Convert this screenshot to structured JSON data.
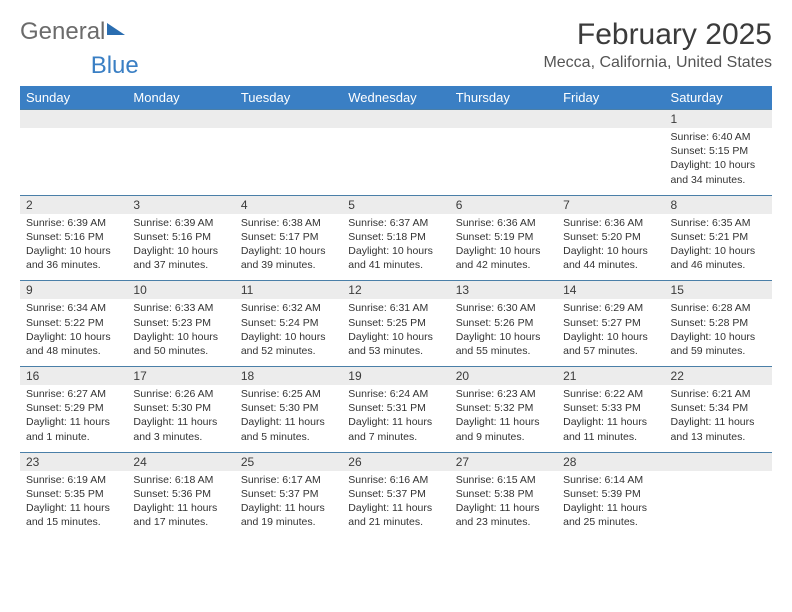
{
  "logo": {
    "general": "General",
    "blue": "Blue"
  },
  "header": {
    "title": "February 2025",
    "location": "Mecca, California, United States"
  },
  "style": {
    "header_bg": "#3a7fc4",
    "header_text": "#ffffff",
    "daynum_bg": "#ececec",
    "row_border": "#4a7fa8",
    "title_fontsize": 30,
    "location_fontsize": 16,
    "cell_fontsize": 10.5
  },
  "days_of_week": [
    "Sunday",
    "Monday",
    "Tuesday",
    "Wednesday",
    "Thursday",
    "Friday",
    "Saturday"
  ],
  "weeks": [
    [
      null,
      null,
      null,
      null,
      null,
      null,
      {
        "n": "1",
        "sunrise": "Sunrise: 6:40 AM",
        "sunset": "Sunset: 5:15 PM",
        "daylight": "Daylight: 10 hours and 34 minutes."
      }
    ],
    [
      {
        "n": "2",
        "sunrise": "Sunrise: 6:39 AM",
        "sunset": "Sunset: 5:16 PM",
        "daylight": "Daylight: 10 hours and 36 minutes."
      },
      {
        "n": "3",
        "sunrise": "Sunrise: 6:39 AM",
        "sunset": "Sunset: 5:16 PM",
        "daylight": "Daylight: 10 hours and 37 minutes."
      },
      {
        "n": "4",
        "sunrise": "Sunrise: 6:38 AM",
        "sunset": "Sunset: 5:17 PM",
        "daylight": "Daylight: 10 hours and 39 minutes."
      },
      {
        "n": "5",
        "sunrise": "Sunrise: 6:37 AM",
        "sunset": "Sunset: 5:18 PM",
        "daylight": "Daylight: 10 hours and 41 minutes."
      },
      {
        "n": "6",
        "sunrise": "Sunrise: 6:36 AM",
        "sunset": "Sunset: 5:19 PM",
        "daylight": "Daylight: 10 hours and 42 minutes."
      },
      {
        "n": "7",
        "sunrise": "Sunrise: 6:36 AM",
        "sunset": "Sunset: 5:20 PM",
        "daylight": "Daylight: 10 hours and 44 minutes."
      },
      {
        "n": "8",
        "sunrise": "Sunrise: 6:35 AM",
        "sunset": "Sunset: 5:21 PM",
        "daylight": "Daylight: 10 hours and 46 minutes."
      }
    ],
    [
      {
        "n": "9",
        "sunrise": "Sunrise: 6:34 AM",
        "sunset": "Sunset: 5:22 PM",
        "daylight": "Daylight: 10 hours and 48 minutes."
      },
      {
        "n": "10",
        "sunrise": "Sunrise: 6:33 AM",
        "sunset": "Sunset: 5:23 PM",
        "daylight": "Daylight: 10 hours and 50 minutes."
      },
      {
        "n": "11",
        "sunrise": "Sunrise: 6:32 AM",
        "sunset": "Sunset: 5:24 PM",
        "daylight": "Daylight: 10 hours and 52 minutes."
      },
      {
        "n": "12",
        "sunrise": "Sunrise: 6:31 AM",
        "sunset": "Sunset: 5:25 PM",
        "daylight": "Daylight: 10 hours and 53 minutes."
      },
      {
        "n": "13",
        "sunrise": "Sunrise: 6:30 AM",
        "sunset": "Sunset: 5:26 PM",
        "daylight": "Daylight: 10 hours and 55 minutes."
      },
      {
        "n": "14",
        "sunrise": "Sunrise: 6:29 AM",
        "sunset": "Sunset: 5:27 PM",
        "daylight": "Daylight: 10 hours and 57 minutes."
      },
      {
        "n": "15",
        "sunrise": "Sunrise: 6:28 AM",
        "sunset": "Sunset: 5:28 PM",
        "daylight": "Daylight: 10 hours and 59 minutes."
      }
    ],
    [
      {
        "n": "16",
        "sunrise": "Sunrise: 6:27 AM",
        "sunset": "Sunset: 5:29 PM",
        "daylight": "Daylight: 11 hours and 1 minute."
      },
      {
        "n": "17",
        "sunrise": "Sunrise: 6:26 AM",
        "sunset": "Sunset: 5:30 PM",
        "daylight": "Daylight: 11 hours and 3 minutes."
      },
      {
        "n": "18",
        "sunrise": "Sunrise: 6:25 AM",
        "sunset": "Sunset: 5:30 PM",
        "daylight": "Daylight: 11 hours and 5 minutes."
      },
      {
        "n": "19",
        "sunrise": "Sunrise: 6:24 AM",
        "sunset": "Sunset: 5:31 PM",
        "daylight": "Daylight: 11 hours and 7 minutes."
      },
      {
        "n": "20",
        "sunrise": "Sunrise: 6:23 AM",
        "sunset": "Sunset: 5:32 PM",
        "daylight": "Daylight: 11 hours and 9 minutes."
      },
      {
        "n": "21",
        "sunrise": "Sunrise: 6:22 AM",
        "sunset": "Sunset: 5:33 PM",
        "daylight": "Daylight: 11 hours and 11 minutes."
      },
      {
        "n": "22",
        "sunrise": "Sunrise: 6:21 AM",
        "sunset": "Sunset: 5:34 PM",
        "daylight": "Daylight: 11 hours and 13 minutes."
      }
    ],
    [
      {
        "n": "23",
        "sunrise": "Sunrise: 6:19 AM",
        "sunset": "Sunset: 5:35 PM",
        "daylight": "Daylight: 11 hours and 15 minutes."
      },
      {
        "n": "24",
        "sunrise": "Sunrise: 6:18 AM",
        "sunset": "Sunset: 5:36 PM",
        "daylight": "Daylight: 11 hours and 17 minutes."
      },
      {
        "n": "25",
        "sunrise": "Sunrise: 6:17 AM",
        "sunset": "Sunset: 5:37 PM",
        "daylight": "Daylight: 11 hours and 19 minutes."
      },
      {
        "n": "26",
        "sunrise": "Sunrise: 6:16 AM",
        "sunset": "Sunset: 5:37 PM",
        "daylight": "Daylight: 11 hours and 21 minutes."
      },
      {
        "n": "27",
        "sunrise": "Sunrise: 6:15 AM",
        "sunset": "Sunset: 5:38 PM",
        "daylight": "Daylight: 11 hours and 23 minutes."
      },
      {
        "n": "28",
        "sunrise": "Sunrise: 6:14 AM",
        "sunset": "Sunset: 5:39 PM",
        "daylight": "Daylight: 11 hours and 25 minutes."
      },
      null
    ]
  ]
}
